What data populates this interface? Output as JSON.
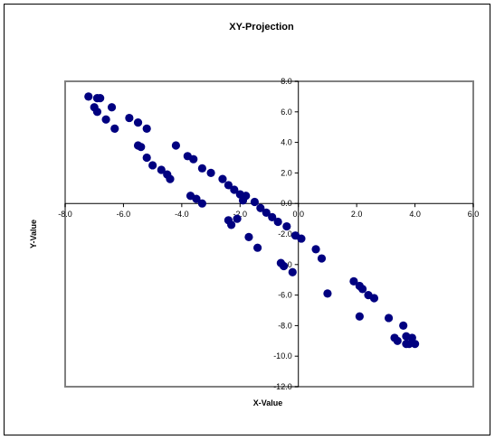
{
  "chart_data": {
    "type": "scatter",
    "title": "XY-Projection",
    "xlabel": "X-Value",
    "ylabel": "Y-Value",
    "xlim": [
      -8,
      6
    ],
    "ylim": [
      -12,
      8
    ],
    "x_ticks": [
      -8,
      -6,
      -4,
      -2,
      0,
      2,
      4,
      6
    ],
    "y_ticks": [
      8,
      6,
      4,
      2,
      0,
      -2,
      -4,
      -6,
      -8,
      -10,
      -12
    ],
    "x_tick_labels": [
      "-8.0",
      "-6.0",
      "-4.0",
      "-2.0",
      "0.0",
      "2.0",
      "4.0",
      "6.0"
    ],
    "y_tick_labels": [
      "8.0",
      "6.0",
      "4.0",
      "2.0",
      "0.0",
      "-2.0",
      "-4.0",
      "-6.0",
      "-8.0",
      "-10.0",
      "-12.0"
    ],
    "grid": false,
    "marker_color": "#000080",
    "plot_border_color": "#808080",
    "points": [
      [
        -7.2,
        7.0
      ],
      [
        -6.9,
        6.9
      ],
      [
        -6.8,
        6.9
      ],
      [
        -7.0,
        6.3
      ],
      [
        -6.9,
        6.0
      ],
      [
        -6.6,
        5.5
      ],
      [
        -6.4,
        6.3
      ],
      [
        -6.3,
        4.9
      ],
      [
        -5.8,
        5.6
      ],
      [
        -5.5,
        5.3
      ],
      [
        -5.2,
        4.9
      ],
      [
        -5.5,
        3.8
      ],
      [
        -5.4,
        3.7
      ],
      [
        -5.2,
        3.0
      ],
      [
        -5.0,
        2.5
      ],
      [
        -4.7,
        2.2
      ],
      [
        -4.5,
        1.9
      ],
      [
        -4.4,
        1.6
      ],
      [
        -4.2,
        3.8
      ],
      [
        -3.8,
        3.1
      ],
      [
        -3.6,
        2.9
      ],
      [
        -3.3,
        2.3
      ],
      [
        -3.0,
        2.0
      ],
      [
        -2.6,
        1.6
      ],
      [
        -2.4,
        1.2
      ],
      [
        -2.2,
        0.9
      ],
      [
        -2.0,
        0.6
      ],
      [
        -1.8,
        0.5
      ],
      [
        -1.5,
        0.1
      ],
      [
        -1.3,
        -0.3
      ],
      [
        -1.1,
        -0.6
      ],
      [
        -0.9,
        -0.9
      ],
      [
        -0.7,
        -1.2
      ],
      [
        -0.4,
        -1.5
      ],
      [
        -0.1,
        -2.1
      ],
      [
        0.1,
        -2.3
      ],
      [
        0.6,
        -3.0
      ],
      [
        0.8,
        -3.6
      ],
      [
        -3.7,
        0.5
      ],
      [
        -3.5,
        0.3
      ],
      [
        -3.3,
        0.0
      ],
      [
        -2.4,
        -1.1
      ],
      [
        -2.3,
        -1.4
      ],
      [
        -2.1,
        -1.0
      ],
      [
        -1.9,
        0.2
      ],
      [
        -1.7,
        -2.2
      ],
      [
        -1.4,
        -2.9
      ],
      [
        -0.6,
        -3.9
      ],
      [
        -0.5,
        -4.1
      ],
      [
        -0.2,
        -4.5
      ],
      [
        1.0,
        -5.9
      ],
      [
        1.9,
        -5.1
      ],
      [
        2.1,
        -5.4
      ],
      [
        2.2,
        -5.6
      ],
      [
        2.1,
        -7.4
      ],
      [
        2.4,
        -6.0
      ],
      [
        2.6,
        -6.2
      ],
      [
        3.1,
        -7.5
      ],
      [
        3.3,
        -8.8
      ],
      [
        3.4,
        -9.0
      ],
      [
        3.6,
        -8.0
      ],
      [
        3.7,
        -8.7
      ],
      [
        3.8,
        -9.2
      ],
      [
        3.9,
        -8.8
      ],
      [
        4.0,
        -9.2
      ],
      [
        3.7,
        -9.2
      ]
    ]
  }
}
